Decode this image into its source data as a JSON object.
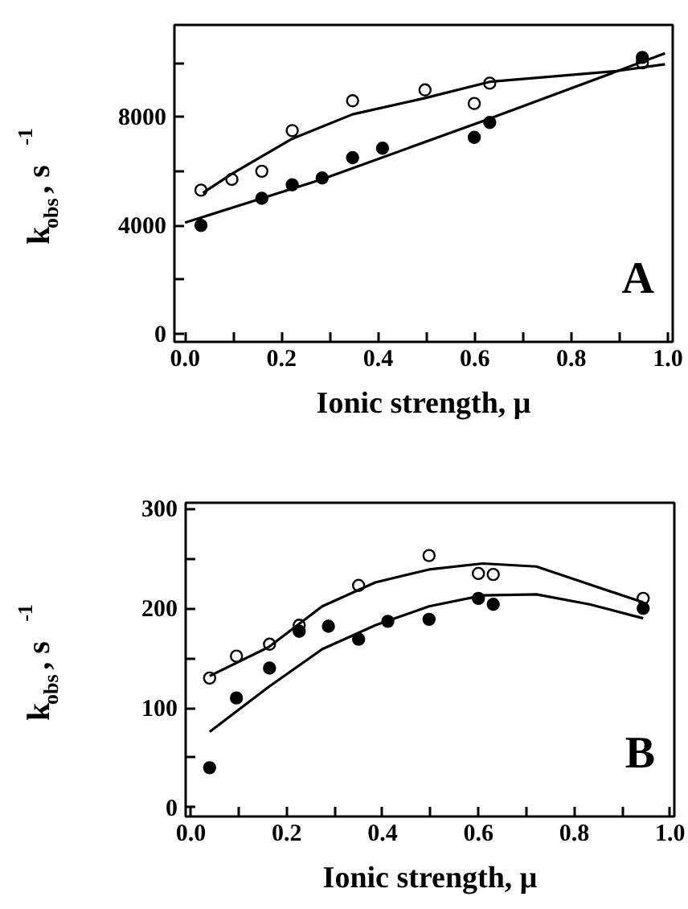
{
  "chart_data": [
    {
      "type": "scatter",
      "xlabel": "Ionic strength, μ",
      "ylabel": "k$_{obs}$, s$^{-1}$",
      "annotations": [
        "A"
      ],
      "grid": false,
      "marker": "circle",
      "xlim": [
        -0.022,
        1.01
      ],
      "ylim": [
        -300,
        11400
      ],
      "xticks": [
        {
          "value": 0,
          "label": "0.0"
        },
        {
          "value": 0.1,
          "label": null
        },
        {
          "value": 0.2,
          "label": "0.2"
        },
        {
          "value": 0.3,
          "label": null
        },
        {
          "value": 0.4,
          "label": "0.4"
        },
        {
          "value": 0.5,
          "label": null
        },
        {
          "value": 0.6,
          "label": "0.6"
        },
        {
          "value": 0.7,
          "label": null
        },
        {
          "value": 0.8,
          "label": "0.8"
        },
        {
          "value": 0.9,
          "label": null
        },
        {
          "value": 1,
          "label": "1.0"
        }
      ],
      "yticks": [
        0,
        {
          "value": 2000,
          "label": null
        },
        4000,
        {
          "value": 6000,
          "label": null
        },
        8000,
        {
          "value": 10000,
          "label": null
        }
      ],
      "series": [
        {
          "color": "#ffffff",
          "x": [
            0.033,
            0.097,
            0.159,
            0.222,
            0.347,
            0.497,
            0.599,
            0.631,
            0.947
          ],
          "values": [
            5300,
            5700,
            6000,
            7500,
            8600,
            9000,
            8500,
            9250,
            10000
          ]
        },
        {
          "color": "#000000",
          "x": [
            0.033,
            0.159,
            0.222,
            0.284,
            0.347,
            0.409,
            0.599,
            0.631,
            0.947
          ],
          "values": [
            4000,
            5000,
            5500,
            5750,
            6500,
            6850,
            7250,
            7800,
            10200
          ]
        },
        {
          "type": "line",
          "marker": "none",
          "color": "#000000",
          "x": [
            0.037,
            0.097,
            0.222,
            0.347,
            0.497,
            0.631,
            0.894,
            0.994
          ],
          "values": [
            5200,
            5900,
            7200,
            8100,
            8700,
            9300,
            9700,
            9950
          ]
        },
        {
          "type": "line",
          "marker": "none",
          "color": "#000000",
          "x": [
            0.0,
            0.283,
            0.617,
            0.994
          ],
          "values": [
            4100,
            5700,
            7850,
            10350
          ]
        }
      ]
    },
    {
      "type": "scatter",
      "xlabel": "Ionic strength, μ",
      "ylabel": "k$_{obs}$, s$^{-1}$",
      "annotations": [
        "B"
      ],
      "grid": false,
      "marker": "circle",
      "xlim": [
        -0.011,
        1.009
      ],
      "ylim": [
        -9,
        306
      ],
      "xticks": [
        {
          "value": 0,
          "label": "0.0"
        },
        {
          "value": 0.1,
          "label": null
        },
        {
          "value": 0.2,
          "label": "0.2"
        },
        {
          "value": 0.3,
          "label": null
        },
        {
          "value": 0.4,
          "label": "0.4"
        },
        {
          "value": 0.5,
          "label": null
        },
        {
          "value": 0.6,
          "label": "0.6"
        },
        {
          "value": 0.7,
          "label": null
        },
        {
          "value": 0.8,
          "label": "0.8"
        },
        {
          "value": 0.9,
          "label": null
        },
        {
          "value": 1,
          "label": "1.0"
        }
      ],
      "yticks": [
        0,
        {
          "value": 50,
          "label": null
        },
        100,
        {
          "value": 150,
          "label": null
        },
        200,
        {
          "value": 250,
          "label": null
        },
        300
      ],
      "series": [
        {
          "color": "#ffffff",
          "x": [
            0.039,
            0.095,
            0.164,
            0.226,
            0.35,
            0.497,
            0.6,
            0.631,
            0.944
          ],
          "values": [
            130,
            152,
            164,
            183,
            223,
            253,
            235,
            234,
            210
          ]
        },
        {
          "color": "#000000",
          "x": [
            0.039,
            0.095,
            0.164,
            0.226,
            0.287,
            0.35,
            0.411,
            0.497,
            0.6,
            0.631,
            0.944
          ],
          "values": [
            40,
            110,
            140,
            177,
            182,
            169,
            187,
            189,
            210,
            204,
            200
          ]
        },
        {
          "type": "line",
          "marker": "none",
          "color": "#000000",
          "x": [
            0.039,
            0.162,
            0.274,
            0.385,
            0.497,
            0.609,
            0.721,
            0.832,
            0.944
          ],
          "values": [
            132,
            161,
            202,
            226,
            239,
            245,
            242,
            224,
            206
          ]
        },
        {
          "type": "line",
          "marker": "none",
          "color": "#000000",
          "x": [
            0.039,
            0.162,
            0.274,
            0.385,
            0.497,
            0.609,
            0.721,
            0.832,
            0.944
          ],
          "values": [
            76,
            121,
            159,
            183,
            202,
            213,
            214,
            204,
            190
          ]
        }
      ]
    }
  ]
}
